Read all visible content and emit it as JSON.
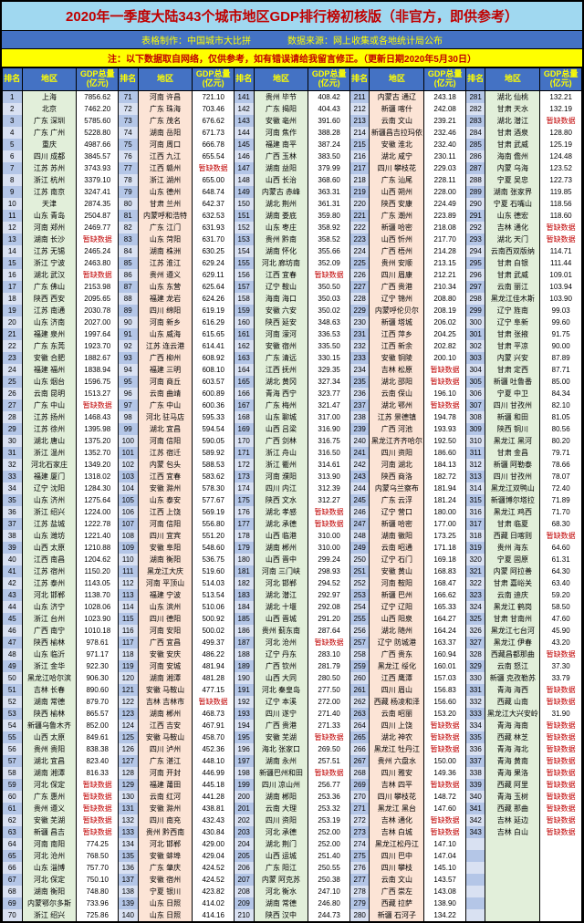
{
  "title": "2020年一季度大陆343个城市地区GDP排行榜初核版（非官方，即供参考）",
  "subtitle": "表格制作：中国城市大比拼　　　　数据来源：网上收集或各地统计局公布",
  "note": "注：以下数据取自网络，仅供参考，如有错误请给我留言修正。（更新日期2020年5月30日）",
  "headers": {
    "rank": "排名",
    "region": "地区",
    "gdp": "GDP总量(亿元)"
  },
  "rows": [
    [
      1,
      "上海",
      "7856.62",
      71,
      "河南 许昌",
      "721.10",
      141,
      "贵州 毕节",
      "408.42",
      211,
      "内蒙古 通辽",
      "243.18",
      281,
      "湖北 仙桃",
      "132.21"
    ],
    [
      2,
      "北京",
      "7462.20",
      72,
      "广东 珠海",
      "703.46",
      142,
      "广东 揭阳",
      "404.43",
      212,
      "新疆 喀什",
      "242.08",
      282,
      "甘肃 天水",
      "132.19"
    ],
    [
      3,
      "广东 深圳",
      "5785.60",
      73,
      "广东 茂名",
      "676.62",
      143,
      "安徽 亳州",
      "391.60",
      213,
      "云南 文山",
      "239.21",
      283,
      "湖北 潜江",
      "暂缺数据"
    ],
    [
      4,
      "广东 广州",
      "5228.80",
      74,
      "湖南 岳阳",
      "671.73",
      144,
      "河南 焦作",
      "388.28",
      214,
      "新疆昌吉拉玛依",
      "232.46",
      284,
      "甘肃 酒泉",
      "128.80"
    ],
    [
      5,
      "重庆",
      "4987.66",
      75,
      "河南 周口",
      "666.78",
      145,
      "福建 南平",
      "387.24",
      215,
      "安徽 淮北",
      "232.40",
      285,
      "甘肃 武威",
      "125.19"
    ],
    [
      6,
      "四川 成都",
      "3845.57",
      76,
      "江西 九江",
      "655.54",
      146,
      "广西 玉林",
      "383.50",
      216,
      "湖北 咸宁",
      "230.11",
      286,
      "海南 儋州",
      "124.48"
    ],
    [
      7,
      "江苏 苏州",
      "3743.93",
      77,
      "江西 赣州",
      "暂缺数据",
      147,
      "湖南 益阳",
      "379.99",
      217,
      "四川 攀枝花",
      "229.03",
      287,
      "内蒙 乌海",
      "123.52"
    ],
    [
      8,
      "浙江 杭州",
      "3379.10",
      78,
      "浙江 湖州",
      "655.00",
      148,
      "山西 长治",
      "368.60",
      218,
      "广东 汕尾",
      "228.11",
      288,
      "宁夏 吴忠",
      "122.73"
    ],
    [
      9,
      "江苏 南京",
      "3247.41",
      79,
      "山东 德州",
      "648.74",
      149,
      "内蒙古 赤峰",
      "363.31",
      219,
      "山西 朔州",
      "228.00",
      289,
      "湖南 张家界",
      "119.85"
    ],
    [
      10,
      "天津",
      "2874.35",
      80,
      "甘肃 兰州",
      "642.37",
      150,
      "湖北 荆州",
      "361.31",
      220,
      "陕西 安康",
      "224.49",
      290,
      "宁夏 石嘴山",
      "118.56"
    ],
    [
      11,
      "山东 青岛",
      "2504.87",
      81,
      "内蒙呼和浩特",
      "632.53",
      151,
      "湖南 娄底",
      "359.80",
      221,
      "广东 潮州",
      "223.89",
      291,
      "山东 德宏",
      "118.60"
    ],
    [
      12,
      "河南 郑州",
      "2469.77",
      82,
      "广东 江门",
      "631.93",
      152,
      "山东 枣庄",
      "358.92",
      222,
      "新疆 哈密",
      "218.08",
      292,
      "吉林 通化",
      "暂缺数据"
    ],
    [
      13,
      "湖南 长沙",
      "暂缺数据",
      83,
      "山东 菏阳",
      "631.70",
      153,
      "贵州 黔南",
      "358.52",
      223,
      "山西 忻州",
      "217.70",
      293,
      "湖北 天门",
      "暂缺数据"
    ],
    [
      14,
      "江苏 无锡",
      "2465.24",
      84,
      "湖南 株洲",
      "630.25",
      154,
      "湖南 怀化",
      "355.66",
      224,
      "广西 梧州",
      "214.28",
      294,
      "云南西双版纳",
      "114.71"
    ],
    [
      15,
      "浙江 宁波",
      "2463.80",
      85,
      "江苏 淮江",
      "629.24",
      155,
      "河北 廊坊南",
      "352.09",
      225,
      "贵州 安顺",
      "213.15",
      295,
      "甘肃 白银",
      "111.44"
    ],
    [
      16,
      "湖北 武汉",
      "暂缺数据",
      86,
      "贵州 遵义",
      "629.11",
      156,
      "江西 宜春",
      "暂缺数据",
      226,
      "四川 眉康",
      "212.21",
      296,
      "甘肃 武威",
      "109.01"
    ],
    [
      17,
      "广东 佛山",
      "2153.98",
      87,
      "山东 东营",
      "625.64",
      157,
      "辽宁 鞍山",
      "350.50",
      227,
      "广西 贵港",
      "210.34",
      297,
      "云南 丽江",
      "103.94"
    ],
    [
      18,
      "陕西 西安",
      "2095.65",
      88,
      "福建 龙岩",
      "624.26",
      158,
      "海南 海口",
      "350.03",
      228,
      "辽宁 锦州",
      "208.80",
      298,
      "黑龙江佳木斯",
      "103.90"
    ],
    [
      19,
      "江苏 南通",
      "2030.78",
      89,
      "四川 绵阳",
      "619.19",
      159,
      "安徽 六安",
      "350.02",
      229,
      "内蒙呼伦贝尔",
      "208.19",
      299,
      "辽宁 旌南",
      "99.03"
    ],
    [
      20,
      "山东 济南",
      "2027.00",
      90,
      "河南 新乡",
      "616.29",
      160,
      "陕西 延安",
      "348.63",
      230,
      "新疆 塔城",
      "206.02",
      300,
      "辽宁 阜新",
      "99.60"
    ],
    [
      21,
      "福建 泉州",
      "1997.64",
      91,
      "山东 威海",
      "615.65",
      161,
      "河南 濛河",
      "336.53",
      231,
      "江西 萍乡",
      "204.25",
      301,
      "甘肃 张掖",
      "91.75"
    ],
    [
      22,
      "广东 东莞",
      "1923.70",
      92,
      "江苏 连云港",
      "614.41",
      162,
      "安徽 宿州",
      "335.50",
      232,
      "江西 新余",
      "202.82",
      302,
      "甘肃 平凉",
      "90.00"
    ],
    [
      23,
      "安徽 合肥",
      "1882.67",
      93,
      "广西 柳州",
      "608.92",
      163,
      "广东 清远",
      "330.15",
      233,
      "安徽 铜陵",
      "200.10",
      303,
      "内蒙 兴安",
      "87.89"
    ],
    [
      24,
      "福建 福州",
      "1838.94",
      94,
      "福建 三明",
      "608.10",
      164,
      "江西 抚州",
      "329.35",
      234,
      "吉林 松原",
      "暂缺数据",
      304,
      "甘肃 定西",
      "87.71"
    ],
    [
      25,
      "山东 烟台",
      "1596.75",
      95,
      "河南 商丘",
      "603.57",
      165,
      "湖北 黄冈",
      "327.34",
      235,
      "湖北 邵阳",
      "暂缺数据",
      305,
      "新疆 吐鲁番",
      "85.00"
    ],
    [
      26,
      "云南 昆明",
      "1513.27",
      96,
      "云南 曲靖",
      "600.89",
      166,
      "青海 西宁",
      "323.77",
      236,
      "云南 保山",
      "196.10",
      306,
      "宁夏 中卫",
      "84.34"
    ],
    [
      27,
      "广东 中山",
      "暂缺数据",
      97,
      "广东 中山",
      "600.36",
      167,
      "广东 梅州",
      "321.47",
      237,
      "湖北 鄂州",
      "暂缺数据",
      307,
      "四川 甘孜州",
      "82.10"
    ],
    [
      28,
      "江苏 扬州",
      "1468.43",
      98,
      "河北 驻马店",
      "595.33",
      168,
      "山东 聊城",
      "317.00",
      238,
      "江苏 景德镇",
      "194.78",
      308,
      "新疆 和田",
      "81.05"
    ],
    [
      29,
      "江苏 徐州",
      "1395.98",
      99,
      "湖北 宜昌",
      "594.54",
      169,
      "山西 吕梁",
      "316.90",
      239,
      "广西 河池",
      "193.93",
      309,
      "陕西 铜川",
      "80.56"
    ],
    [
      30,
      "湖北 唐山",
      "1375.20",
      100,
      "河南 信阳",
      "590.05",
      170,
      "广西 剑林",
      "316.75",
      240,
      "黑龙江齐齐哈尔",
      "192.50",
      310,
      "黑龙江 黑河",
      "80.20"
    ],
    [
      31,
      "浙江 温州",
      "1352.70",
      101,
      "江苏 宿迁",
      "589.92",
      171,
      "浙江 舟山",
      "316.50",
      241,
      "四川 资阳",
      "186.60",
      311,
      "甘肃 金昌",
      "79.71"
    ],
    [
      32,
      "河北石家庄",
      "1349.20",
      102,
      "内蒙 包头",
      "588.53",
      172,
      "浙江 衢州",
      "314.61",
      242,
      "河南 湖北",
      "184.13",
      312,
      "新疆 阿勒泰",
      "78.66"
    ],
    [
      33,
      "福建 厦门",
      "1318.02",
      103,
      "江西 宜春",
      "583.62",
      173,
      "河南 濮阳",
      "313.90",
      243,
      "陕西 商洛",
      "182.72",
      313,
      "四川 甘孜州",
      "78.07"
    ],
    [
      34,
      "辽宁 沈阳",
      "1284.30",
      104,
      "安徽 滁州",
      "578.30",
      174,
      "四川 内江",
      "312.39",
      244,
      "内蒙乌兰察布",
      "181.94",
      314,
      "黑龙江双鸭山",
      "72.40"
    ],
    [
      35,
      "山东 济州",
      "1275.64",
      105,
      "山东 泰安",
      "577.67",
      175,
      "陕西 文水",
      "312.27",
      245,
      "广东 云浮",
      "181.24",
      315,
      "新疆博尔塔拉",
      "71.89"
    ],
    [
      36,
      "浙江 绍兴",
      "1224.00",
      106,
      "江西 上饶",
      "569.19",
      176,
      "湖北 孝感",
      "暂缺数据",
      246,
      "辽宁 营口",
      "180.00",
      316,
      "黑龙江 鸡西",
      "71.70"
    ],
    [
      37,
      "江苏 盐城",
      "1222.78",
      107,
      "河南 信阳",
      "556.80",
      177,
      "湖北 承德",
      "暂缺数据",
      247,
      "新疆 哈密",
      "177.00",
      317,
      "甘肃 临夏",
      "68.30"
    ],
    [
      38,
      "山东 潍坊",
      "1221.40",
      108,
      "四川 宜宾",
      "551.20",
      178,
      "山西 临港",
      "310.00",
      248,
      "湖南 徽阳",
      "173.25",
      318,
      "西藏 日喀则",
      "暂缺数据"
    ],
    [
      39,
      "山西 太原",
      "1210.88",
      109,
      "安徽 阜阳",
      "548.60",
      179,
      "湖南 郴州",
      "310.00",
      249,
      "云南 昭通",
      "171.18",
      319,
      "贵州 海东",
      "64.60"
    ],
    [
      40,
      "江西 南昌",
      "1204.62",
      110,
      "湖南 衡阳",
      "536.75",
      180,
      "山西 晋中",
      "299.24",
      250,
      "辽宁 石门",
      "169.18",
      320,
      "宁夏 固原",
      "61.31"
    ],
    [
      41,
      "江苏 宿州",
      "1150.20",
      111,
      "黑龙江大庆",
      "519.60",
      181,
      "河南 三门峡",
      "298.93",
      251,
      "安徽 黄山",
      "168.83",
      321,
      "内蒙 阿拉善",
      "64.30"
    ],
    [
      42,
      "江苏 泰州",
      "1143.05",
      112,
      "河南 平顶山",
      "514.03",
      182,
      "河北 邯郸",
      "294.52",
      252,
      "河南 鞍阳",
      "168.47",
      322,
      "甘肃 嘉峪关",
      "63.40"
    ],
    [
      43,
      "河北 邯郸",
      "1138.70",
      113,
      "福建 宁波",
      "513.54",
      183,
      "湖北 潜江",
      "292.97",
      253,
      "新疆 巴州",
      "166.62",
      323,
      "云南 迪庆",
      "59.20"
    ],
    [
      44,
      "山东 济宁",
      "1028.06",
      114,
      "山东 滨州",
      "510.06",
      184,
      "湖北 十堰",
      "292.08",
      254,
      "辽宁 辽阳",
      "165.33",
      324,
      "黑龙江 鹤岗",
      "58.50"
    ],
    [
      45,
      "浙江 台州",
      "1023.90",
      115,
      "四川 德阳",
      "500.92",
      185,
      "山西 晋城",
      "291.20",
      255,
      "山西 阳泉",
      "164.27",
      325,
      "甘肃 甘南州",
      "47.60"
    ],
    [
      46,
      "广西 南宁",
      "1010.18",
      116,
      "河南 安阳",
      "500.02",
      186,
      "贵州 蓟东南",
      "287.64",
      256,
      "湖北 随州",
      "164.24",
      326,
      "黑龙江七台河",
      "45.90"
    ],
    [
      47,
      "陕西 榆林",
      "978.61",
      117,
      "广西 宜昌",
      "499.37",
      187,
      "河北 沧州",
      "暂缺数据",
      257,
      "辽宁 防城港",
      "163.37",
      327,
      "黑龙江 伊春",
      "43.20"
    ],
    [
      48,
      "山东 临沂",
      "971.17",
      118,
      "安徽 安庆",
      "486.22",
      188,
      "辽宁 丹东",
      "283.10",
      258,
      "广西 贵东",
      "160.94",
      328,
      "西藏昌都那曲",
      "暂缺数据"
    ],
    [
      49,
      "浙江 金华",
      "922.30",
      119,
      "河南 安城",
      "481.94",
      189,
      "广西 钦州",
      "281.79",
      259,
      "黑龙江 绥化",
      "160.01",
      329,
      "云南 怒江",
      "37.30"
    ],
    [
      50,
      "黑龙江哈尔滨",
      "906.30",
      120,
      "湖南 湘潭",
      "481.28",
      190,
      "山西 大同",
      "280.50",
      260,
      "江西 鹰潭",
      "157.03",
      330,
      "新疆 克孜勒苏",
      "33.79"
    ],
    [
      51,
      "吉林 长春",
      "890.60",
      121,
      "安徽 马鞍山",
      "477.15",
      191,
      "河北 秦皇岛",
      "277.50",
      261,
      "四川 眉山",
      "156.83",
      331,
      "青海 海西",
      "暂缺数据"
    ],
    [
      52,
      "湖南 常德",
      "879.70",
      122,
      "吉林 吉林市",
      "暂缺数据",
      192,
      "辽宁 本溪",
      "272.00",
      262,
      "西藏 杨凌和泽",
      "156.60",
      332,
      "西藏 山南",
      "暂缺数据"
    ],
    [
      53,
      "陕西 榆林",
      "865.57",
      123,
      "湖南 郴州",
      "468.73",
      193,
      "四川 遂宁",
      "271.40",
      263,
      "云南 昭丽",
      "153.20",
      333,
      "黑龙江大兴安岭",
      "31.90"
    ],
    [
      54,
      "新疆乌鲁木齐",
      "852.00",
      124,
      "江西 吉安",
      "467.91",
      194,
      "广西 贵港",
      "271.33",
      264,
      "四川 上饶",
      "暂缺数据",
      334,
      "青海 海南",
      "暂缺数据"
    ],
    [
      55,
      "山西 太原",
      "849.61",
      125,
      "安徽 马鞍山",
      "458.70",
      195,
      "安徽 芜湖",
      "暂缺数据",
      265,
      "湖北 神农",
      "暂缺数据",
      335,
      "西藏 林芝",
      "暂缺数据"
    ],
    [
      56,
      "贵州 贵阳",
      "838.38",
      126,
      "四川 泸州",
      "452.36",
      196,
      "海北 张家口",
      "269.50",
      266,
      "黑龙江 牡丹江",
      "暂缺数据",
      336,
      "青海 海北",
      "暂缺数据"
    ],
    [
      57,
      "湖北 宜昌",
      "823.40",
      127,
      "广东 湛江",
      "448.10",
      197,
      "湖南 永州",
      "257.51",
      267,
      "贵州 六盘水",
      "150.00",
      337,
      "青海 黄南",
      "暂缺数据"
    ],
    [
      58,
      "湖南 湘潭",
      "816.33",
      128,
      "河南 开封",
      "446.99",
      198,
      "新疆巴州和田",
      "暂缺数据",
      268,
      "四川 雅安",
      "149.36",
      338,
      "青海 果洛",
      "暂缺数据"
    ],
    [
      59,
      "河北 保定",
      "暂缺数据",
      129,
      "福建 莆田",
      "445.18",
      199,
      "四川 凉山州",
      "256.77",
      269,
      "吉林 四平",
      "暂缺数据",
      339,
      "西藏 阿里",
      "暂缺数据"
    ],
    [
      60,
      "广东 惠州",
      "暂缺数据",
      130,
      "云南 红河",
      "441.28",
      200,
      "湖南 郴阳",
      "253.36",
      270,
      "四川 攀枝花",
      "148.72",
      340,
      "青海 玉树",
      "暂缺数据"
    ],
    [
      61,
      "贵州 遵义",
      "暂缺数据",
      131,
      "安徽 滁州",
      "438.81",
      201,
      "云南 大理",
      "253.32",
      271,
      "黑龙江 黑台",
      "147.60",
      341,
      "西藏 那曲",
      "暂缺数据"
    ],
    [
      62,
      "安徽 芜湖",
      "暂缺数据",
      132,
      "四川 南充",
      "432.43",
      202,
      "四川 资阳",
      "253.19",
      272,
      "吉林 通化",
      "暂缺数据",
      342,
      "吉林 延边",
      "暂缺数据"
    ],
    [
      63,
      "新疆 昌吉",
      "暂缺数据",
      133,
      "贵州 黔西南",
      "430.84",
      203,
      "河北 承德",
      "252.00",
      273,
      "吉林 白城",
      "暂缺数据",
      343,
      "吉林 白山",
      "暂缺数据"
    ],
    [
      64,
      "河南 南阳",
      "774.25",
      134,
      "河北 邯郸",
      "429.00",
      204,
      "湖北 荆门",
      "252.00",
      274,
      "黑龙江松丹江",
      "147.10",
      "",
      "",
      ""
    ],
    [
      65,
      "河北 沧州",
      "768.50",
      135,
      "安徽 蚌埠",
      "429.04",
      205,
      "山西 运城",
      "251.40",
      275,
      "四川 巴中",
      "147.04",
      "",
      "",
      ""
    ],
    [
      66,
      "山东 淄博",
      "757.70",
      136,
      "广东 肇庆",
      "424.52",
      206,
      "广东 阳江",
      "250.55",
      276,
      "四川 攀枝",
      "145.10",
      "",
      "",
      ""
    ],
    [
      67,
      "河北 保定",
      "750.10",
      137,
      "安徽 宿州",
      "424.52",
      207,
      "内蒙 阿克苏",
      "250.38",
      277,
      "云南 文山",
      "143.57",
      "",
      "",
      ""
    ],
    [
      68,
      "湖南 衡阳",
      "748.80",
      138,
      "宁夏 银川",
      "423.82",
      208,
      "河北 衡水",
      "247.10",
      278,
      "广西 崇左",
      "143.08",
      "",
      "",
      ""
    ],
    [
      69,
      "内蒙鄂尔多斯",
      "733.96",
      139,
      "山东 日照",
      "414.02",
      209,
      "湖南 常德",
      "246.80",
      279,
      "西藏 拉萨",
      "138.90",
      "",
      "",
      ""
    ],
    [
      70,
      "浙江 绍兴",
      "725.86",
      140,
      "山东 日照",
      "414.16",
      210,
      "陕西 汉中",
      "244.73",
      280,
      "新疆 石河子",
      "134.22",
      "",
      "",
      ""
    ]
  ]
}
